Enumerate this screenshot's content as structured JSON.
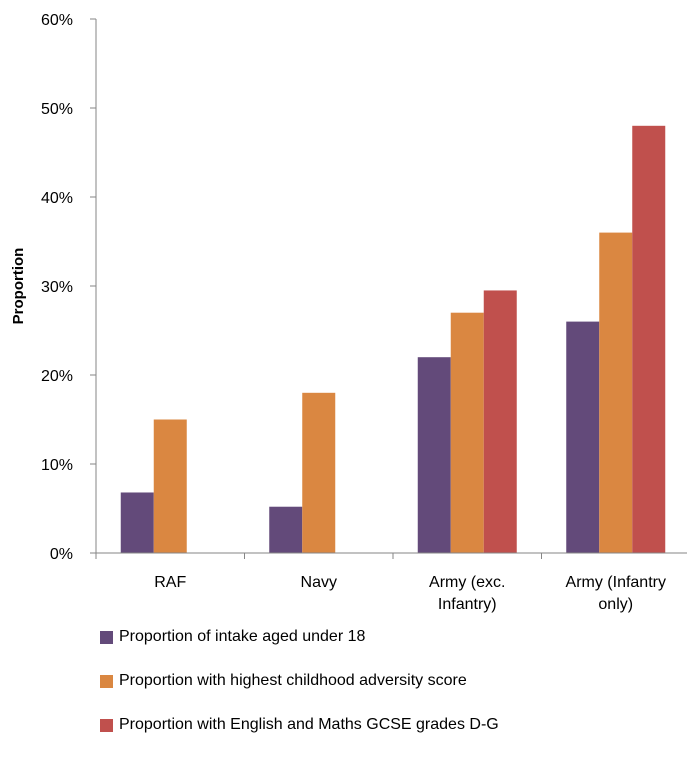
{
  "chart_data": {
    "type": "bar",
    "title": "",
    "xlabel": "",
    "ylabel": "Proportion",
    "ylim": [
      0,
      0.6
    ],
    "yticks": [
      0,
      0.1,
      0.2,
      0.3,
      0.4,
      0.5,
      0.6
    ],
    "ytick_labels": [
      "0%",
      "10%",
      "20%",
      "30%",
      "40%",
      "50%",
      "60%"
    ],
    "grid": false,
    "legend_position": "bottom",
    "categories": [
      [
        "RAF"
      ],
      [
        "Navy"
      ],
      [
        "Army (exc.",
        "Infantry)"
      ],
      [
        "Army (Infantry",
        "only)"
      ]
    ],
    "series": [
      {
        "name": "Proportion of intake aged under 18",
        "color": "#634a7a",
        "values": [
          0.068,
          0.052,
          0.22,
          0.26
        ]
      },
      {
        "name": "Proportion with highest childhood adversity score",
        "color": "#da8741",
        "values": [
          0.15,
          0.18,
          0.27,
          0.36
        ]
      },
      {
        "name": "Proportion with English and Maths GCSE grades D-G",
        "color": "#c0504d",
        "values": [
          null,
          null,
          0.295,
          0.48
        ]
      }
    ]
  }
}
